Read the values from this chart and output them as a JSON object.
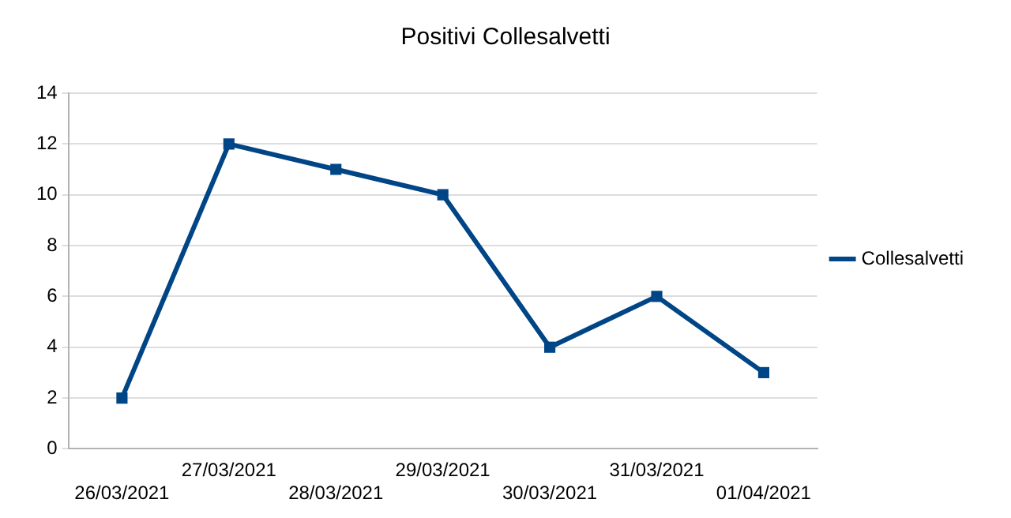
{
  "chart_data": {
    "type": "line",
    "title": "Positivi Collesalvetti",
    "categories": [
      "26/03/2021",
      "27/03/2021",
      "28/03/2021",
      "29/03/2021",
      "30/03/2021",
      "31/03/2021",
      "01/04/2021"
    ],
    "series": [
      {
        "name": "Collesalvetti",
        "color": "#004586",
        "values": [
          2,
          12,
          11,
          10,
          4,
          6,
          3
        ]
      }
    ],
    "ylim": [
      0,
      14
    ],
    "yticks": [
      0,
      2,
      4,
      6,
      8,
      10,
      12,
      14
    ],
    "grid": "y",
    "legend": "right",
    "marker": "square"
  }
}
